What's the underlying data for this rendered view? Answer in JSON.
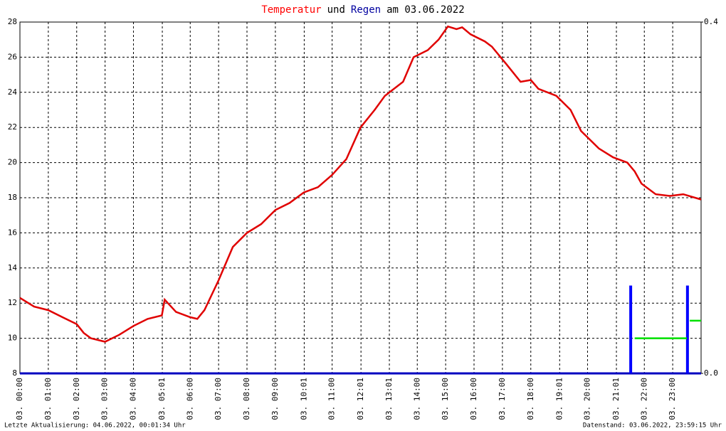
{
  "chart_data": {
    "type": "line",
    "title_parts": [
      {
        "text": "Temperatur",
        "color": "#ff0000"
      },
      {
        "text": "und",
        "color": "#000000"
      },
      {
        "text": "Regen",
        "color": "#0000a0"
      },
      {
        "text": "am 03.06.2022",
        "color": "#000000"
      }
    ],
    "footer_left": "Letzte Aktualisierung: 04.06.2022, 00:01:34 Uhr",
    "footer_right": "Datenstand: 03.06.2022, 23:59:15 Uhr",
    "xlim": [
      0,
      24
    ],
    "xticks": [
      {
        "value": 0,
        "label": "03. 00:00"
      },
      {
        "value": 1,
        "label": "03. 01:00"
      },
      {
        "value": 2,
        "label": "03. 02:00"
      },
      {
        "value": 3,
        "label": "03. 03:00"
      },
      {
        "value": 4,
        "label": "03. 04:00"
      },
      {
        "value": 5.0167,
        "label": "03. 05:01"
      },
      {
        "value": 6,
        "label": "03. 06:00"
      },
      {
        "value": 7,
        "label": "03. 07:00"
      },
      {
        "value": 8,
        "label": "03. 08:00"
      },
      {
        "value": 9,
        "label": "03. 09:00"
      },
      {
        "value": 10.0167,
        "label": "03. 10:01"
      },
      {
        "value": 11,
        "label": "03. 11:00"
      },
      {
        "value": 12.0167,
        "label": "03. 12:01"
      },
      {
        "value": 13.0167,
        "label": "03. 13:01"
      },
      {
        "value": 14,
        "label": "03. 14:00"
      },
      {
        "value": 15,
        "label": "03. 15:00"
      },
      {
        "value": 16,
        "label": "03. 16:00"
      },
      {
        "value": 17,
        "label": "03. 17:00"
      },
      {
        "value": 18,
        "label": "03. 18:00"
      },
      {
        "value": 19.0167,
        "label": "03. 19:01"
      },
      {
        "value": 20,
        "label": "03. 20:00"
      },
      {
        "value": 21.0167,
        "label": "03. 21:01"
      },
      {
        "value": 22,
        "label": "03. 22:00"
      },
      {
        "value": 23,
        "label": "03. 23:00"
      }
    ],
    "ylim": [
      8,
      28
    ],
    "yticks": [
      8,
      10,
      12,
      14,
      16,
      18,
      20,
      22,
      24,
      26,
      28
    ],
    "y2lim": [
      0,
      0.4
    ],
    "y2ticks": [
      {
        "value": 0,
        "label": "0.0"
      },
      {
        "value": 0.4,
        "label": "0.4"
      }
    ],
    "grid": true,
    "series": [
      {
        "color": "#e00000",
        "kind": "line",
        "x": [
          0,
          0.5,
          1,
          1.5,
          2,
          2.25,
          2.5,
          3,
          3.5,
          4,
          4.5,
          5,
          5.1,
          5.5,
          6,
          6.25,
          6.5,
          7,
          7.5,
          8,
          8.5,
          9,
          9.5,
          10,
          10.5,
          11,
          11.5,
          12,
          12.5,
          12.86,
          13.5,
          13.87,
          14.37,
          14.75,
          15.08,
          15.38,
          15.58,
          15.88,
          16.38,
          16.63,
          17.14,
          17.64,
          18,
          18.27,
          18.9,
          19.4,
          19.77,
          20.4,
          20.9,
          21.4,
          21.66,
          21.9,
          22.4,
          22.9,
          23.37,
          24
        ],
        "values": [
          12.3,
          11.8,
          11.6,
          11.2,
          10.8,
          10.3,
          10.0,
          9.8,
          10.2,
          10.7,
          11.1,
          11.3,
          12.2,
          11.5,
          11.2,
          11.1,
          11.6,
          13.3,
          15.2,
          16.0,
          16.5,
          17.3,
          17.7,
          18.3,
          18.6,
          19.3,
          20.2,
          22.0,
          23.0,
          23.8,
          24.6,
          26.0,
          26.4,
          27.0,
          27.75,
          27.6,
          27.7,
          27.3,
          26.9,
          26.6,
          25.6,
          24.6,
          24.7,
          24.2,
          23.8,
          23.0,
          21.8,
          20.8,
          20.3,
          20.0,
          19.5,
          18.8,
          18.2,
          18.1,
          18.2,
          17.9
        ]
      },
      {
        "color": "#0000ff",
        "kind": "bar",
        "axis": "y2",
        "x": [
          21.52,
          23.52
        ],
        "values": [
          0.1,
          0.1
        ]
      },
      {
        "color": "#00e000",
        "kind": "line",
        "axis": "y2",
        "x": [
          21.66,
          23.5,
          null,
          23.6,
          24
        ],
        "values": [
          0.04,
          0.04,
          null,
          0.06,
          0.06
        ]
      }
    ]
  }
}
